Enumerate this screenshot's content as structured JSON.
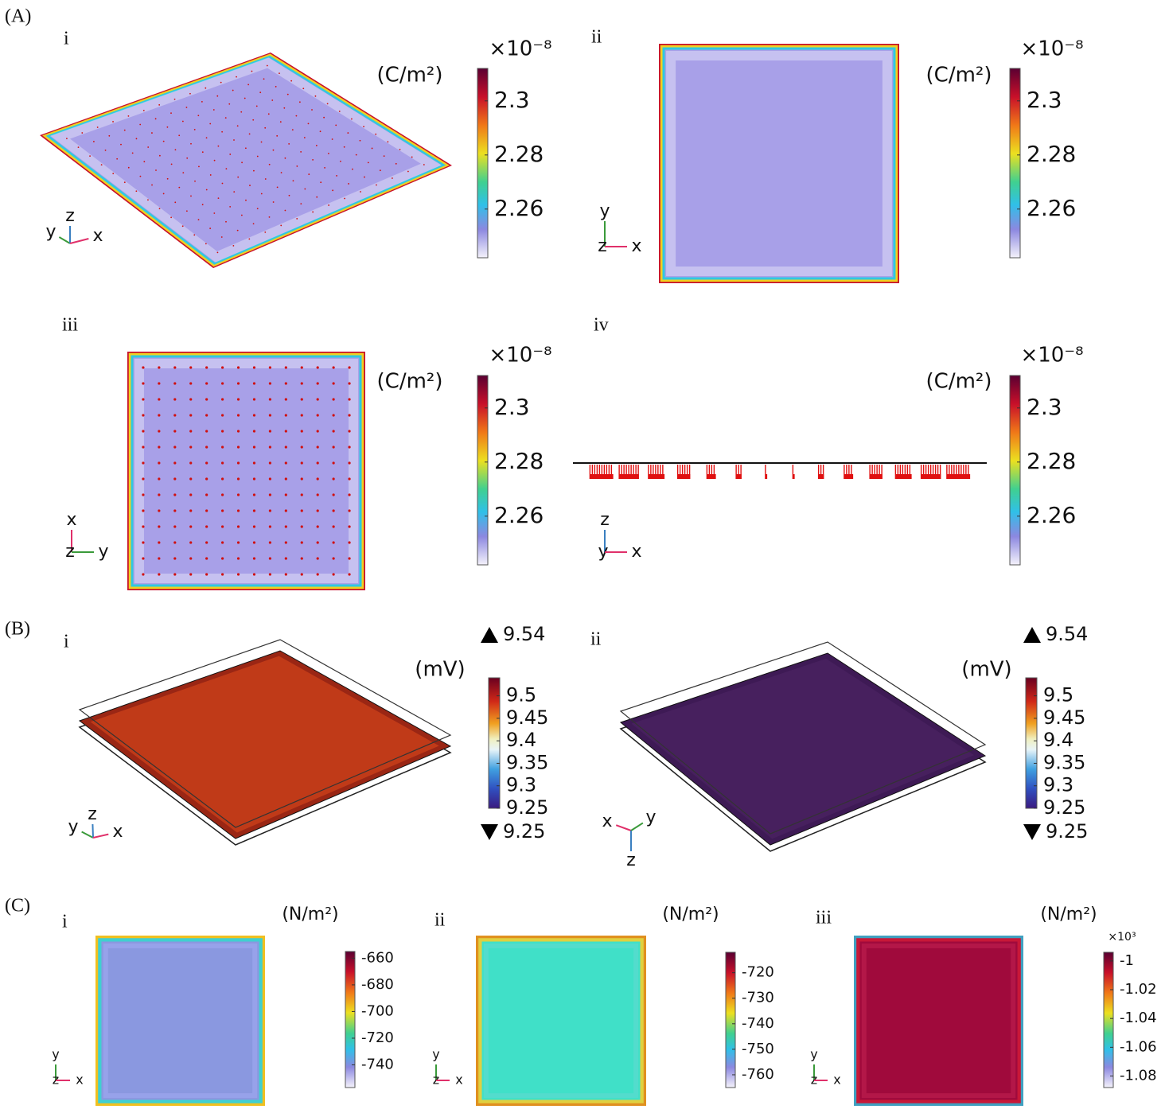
{
  "figure": {
    "panels": [
      {
        "label": "(A)",
        "subpanels": [
          {
            "label": "i",
            "unit": "(C/m²)",
            "multiplier": "×10⁻⁸",
            "ticks": [
              2.3,
              2.28,
              2.26
            ],
            "range": [
              2.242,
              2.312
            ],
            "axes": [
              "y",
              "z",
              "x"
            ]
          },
          {
            "label": "ii",
            "unit": "(C/m²)",
            "multiplier": "×10⁻⁸",
            "ticks": [
              2.3,
              2.28,
              2.26
            ],
            "range": [
              2.242,
              2.312
            ],
            "axes": [
              "y",
              "z",
              "x"
            ]
          },
          {
            "label": "iii",
            "unit": "(C/m²)",
            "multiplier": "×10⁻⁸",
            "ticks": [
              2.3,
              2.28,
              2.26
            ],
            "range": [
              2.242,
              2.312
            ],
            "axes": [
              "x",
              "z",
              "y"
            ]
          },
          {
            "label": "iv",
            "unit": "(C/m²)",
            "multiplier": "×10⁻⁸",
            "ticks": [
              2.3,
              2.28,
              2.26
            ],
            "range": [
              2.242,
              2.312
            ],
            "axes": [
              "z",
              "y",
              "x"
            ]
          }
        ]
      },
      {
        "label": "(B)",
        "subpanels": [
          {
            "label": "i",
            "unit": "(mV)",
            "max": 9.54,
            "min": 9.25,
            "ticks": [
              9.5,
              9.45,
              9.4,
              9.35,
              9.3,
              9.25
            ],
            "range": [
              9.25,
              9.54
            ],
            "axes": [
              "y",
              "z",
              "x"
            ]
          },
          {
            "label": "ii",
            "unit": "(mV)",
            "max": 9.54,
            "min": 9.25,
            "ticks": [
              9.5,
              9.45,
              9.4,
              9.35,
              9.3,
              9.25
            ],
            "range": [
              9.25,
              9.54
            ],
            "axes": [
              "x",
              "y",
              "z"
            ]
          }
        ]
      },
      {
        "label": "(C)",
        "subpanels": [
          {
            "label": "i",
            "unit": "(N/m²)",
            "ticks": [
              -660,
              -680,
              -700,
              -720,
              -740
            ],
            "range": [
              -757,
              -655
            ],
            "axes": [
              "y",
              "z",
              "x"
            ]
          },
          {
            "label": "ii",
            "unit": "(N/m²)",
            "ticks": [
              -720,
              -730,
              -740,
              -750,
              -760
            ],
            "range": [
              -765,
              -712
            ],
            "axes": [
              "y",
              "z",
              "x"
            ]
          },
          {
            "label": "iii",
            "unit": "(N/m²)",
            "multiplier": "×10³",
            "ticks": [
              -1,
              -1.02,
              -1.04,
              -1.06,
              -1.08
            ],
            "range": [
              -1.088,
              -0.994
            ],
            "axes": [
              "y",
              "z",
              "x"
            ]
          }
        ]
      }
    ]
  }
}
